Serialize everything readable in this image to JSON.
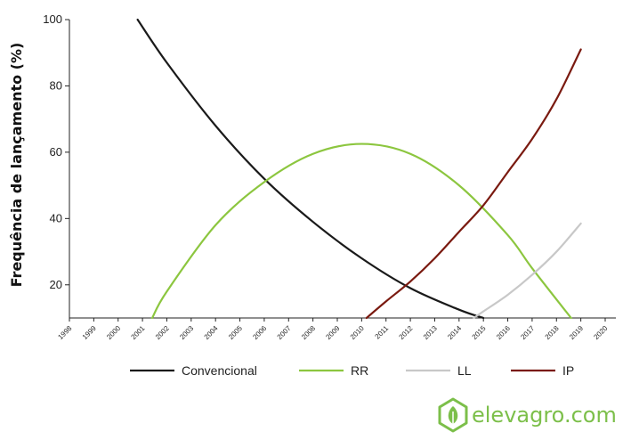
{
  "chart_data": {
    "type": "line",
    "title": "",
    "xlabel": "",
    "ylabel": "Frequência de lançamento (%)",
    "xlim": [
      1998,
      2020
    ],
    "ylim": [
      10,
      100
    ],
    "yticks": [
      20,
      40,
      60,
      80,
      100
    ],
    "x_ticks": [
      "1998",
      "1999",
      "2000",
      "2001",
      "2002",
      "2003",
      "2004",
      "2005",
      "2006",
      "2007",
      "2008",
      "2009",
      "2010",
      "2011",
      "2012",
      "2013",
      "2014",
      "2015",
      "2016",
      "2017",
      "2018",
      "2019",
      "2020"
    ],
    "grid": false,
    "legend_position": "bottom",
    "series": [
      {
        "name": "Convencional",
        "color": "#1a1a1a",
        "x": [
          2000.8,
          2002,
          2004,
          2006,
          2008,
          2010,
          2012,
          2014,
          2015
        ],
        "y": [
          100,
          87,
          68,
          52,
          39,
          28,
          19,
          12.5,
          10
        ]
      },
      {
        "name": "RR",
        "color": "#8cc63f",
        "x": [
          2001.4,
          2002,
          2004,
          2006,
          2008,
          2010,
          2012,
          2014,
          2016,
          2017,
          2018.6
        ],
        "y": [
          10,
          18,
          38,
          51,
          59.5,
          62.5,
          59.5,
          50,
          35,
          25,
          10
        ]
      },
      {
        "name": "LL",
        "color": "#c8c8c8",
        "x": [
          2014.6,
          2015,
          2016,
          2017,
          2018,
          2019
        ],
        "y": [
          10,
          12,
          17,
          23,
          30,
          38.5
        ]
      },
      {
        "name": "IP",
        "color": "#7a1a10",
        "x": [
          2010.2,
          2011,
          2012,
          2013,
          2014,
          2015,
          2016,
          2017,
          2018,
          2019
        ],
        "y": [
          10,
          15,
          21,
          28,
          36,
          44,
          54,
          64,
          76,
          91
        ]
      }
    ]
  },
  "logo": {
    "text": "elevagro.com",
    "color": "#7cbf4a",
    "icon": "leaf-hexagon-icon"
  }
}
